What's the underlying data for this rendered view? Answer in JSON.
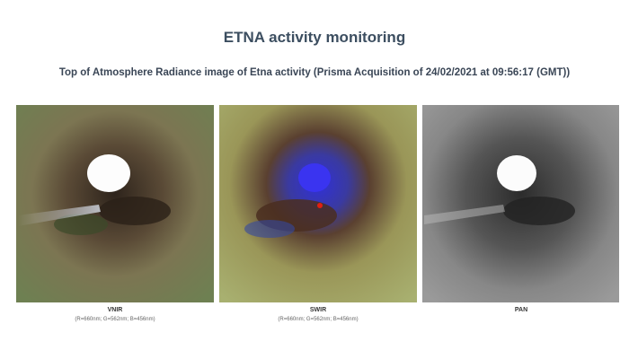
{
  "header": {
    "title": "ETNA activity monitoring",
    "subtitle": "Top of Atmosphere Radiance image of Etna activity (Prisma Acquisition of 24/02/2021 at 09:56:17 (GMT))"
  },
  "panels": [
    {
      "label": "VNIR",
      "bands": "(R=660nm; G=562nm; B=456nm)"
    },
    {
      "label": "SWIR",
      "bands": "(R=660nm; G=562nm; B=456nm)"
    },
    {
      "label": "PAN"
    }
  ]
}
